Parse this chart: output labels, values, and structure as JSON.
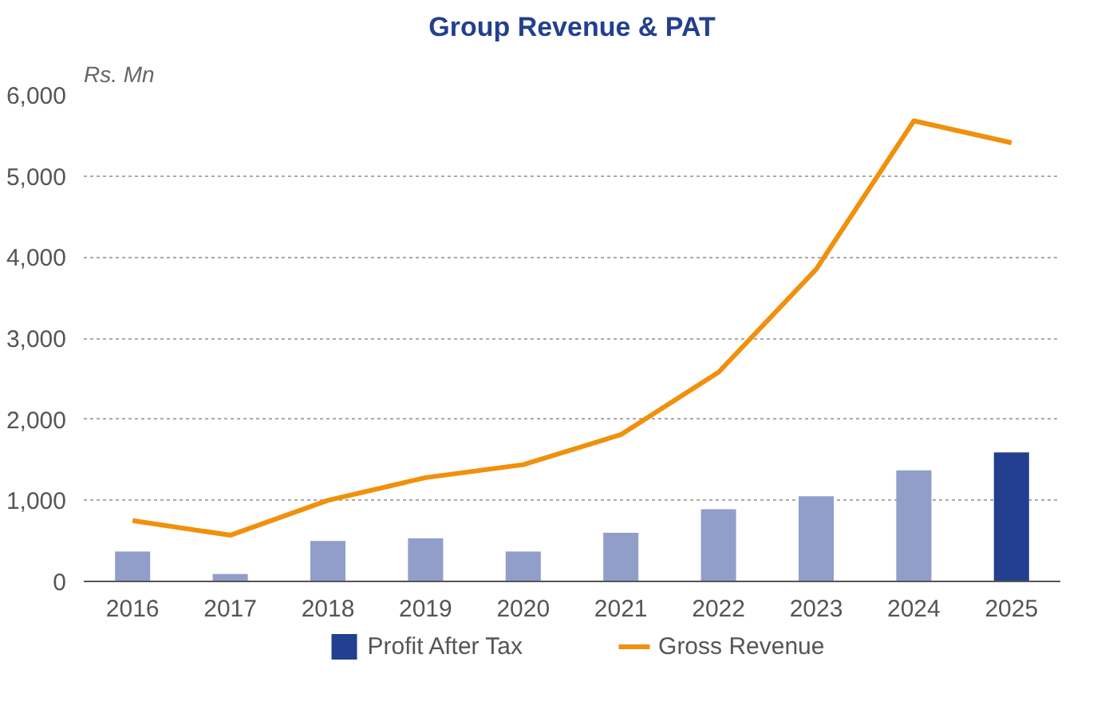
{
  "chart_data": {
    "type": "bar",
    "title": "Group Revenue & PAT",
    "ylabel": "Rs. Mn",
    "categories": [
      "2016",
      "2017",
      "2018",
      "2019",
      "2020",
      "2021",
      "2022",
      "2023",
      "2024",
      "2025"
    ],
    "series": [
      {
        "name": "Profit After Tax",
        "type": "bar",
        "color": "#233f8f",
        "colors": [
          "#919ec9",
          "#919ec9",
          "#919ec9",
          "#919ec9",
          "#919ec9",
          "#919ec9",
          "#919ec9",
          "#919ec9",
          "#919ec9",
          "#233f8f"
        ],
        "values": [
          370,
          90,
          500,
          530,
          370,
          600,
          890,
          1050,
          1370,
          1590
        ]
      },
      {
        "name": "Gross Revenue",
        "type": "line",
        "color": "#f0900c",
        "values": [
          750,
          570,
          1000,
          1280,
          1440,
          1810,
          2580,
          3850,
          5680,
          5410
        ]
      }
    ],
    "ylim": [
      0,
      6000
    ],
    "yticks": [
      {
        "value": 0,
        "label": "0"
      },
      {
        "value": 1000,
        "label": "1,000"
      },
      {
        "value": 2000,
        "label": "2,000"
      },
      {
        "value": 3000,
        "label": "3,000"
      },
      {
        "value": 4000,
        "label": "4,000"
      },
      {
        "value": 5000,
        "label": "5,000"
      },
      {
        "value": 6000,
        "label": "6,000"
      }
    ],
    "grid": "y",
    "legend": "bottom",
    "line_style": "solid",
    "marker": "none"
  }
}
